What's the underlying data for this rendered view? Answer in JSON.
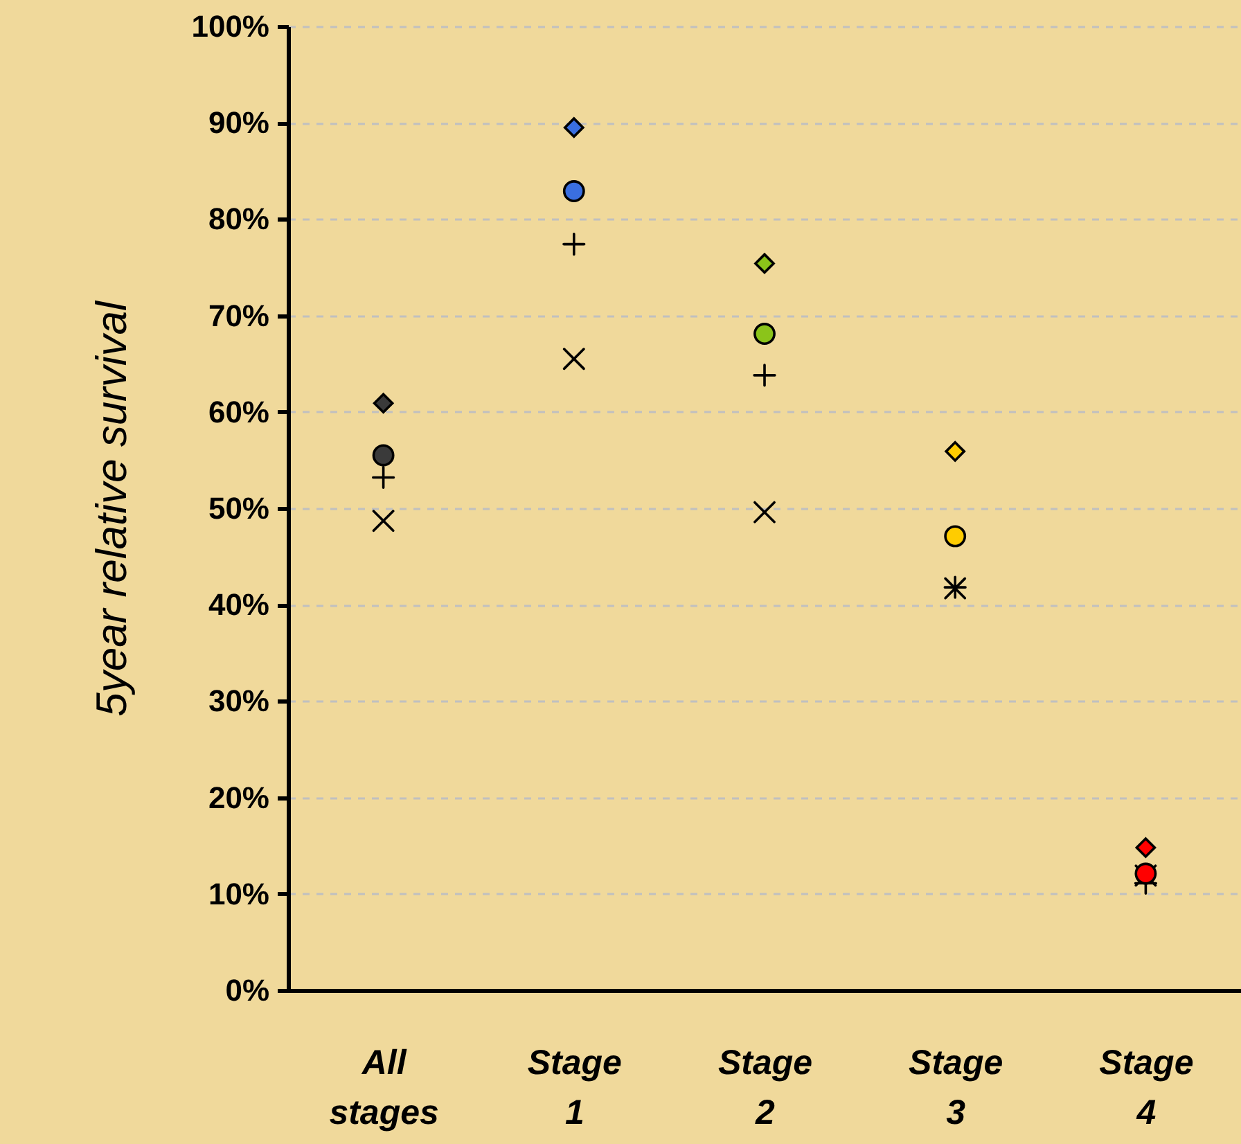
{
  "chart_data": {
    "type": "scatter",
    "ylabel": "5year relative survival",
    "categories": [
      "All stages",
      "Stage 1",
      "Stage 2",
      "Stage 3",
      "Stage 4"
    ],
    "ylim": [
      0,
      100
    ],
    "yticks": [
      {
        "value": 0,
        "label": "0%"
      },
      {
        "value": 10,
        "label": "10%"
      },
      {
        "value": 20,
        "label": "20%"
      },
      {
        "value": 30,
        "label": "30%"
      },
      {
        "value": 40,
        "label": "40%"
      },
      {
        "value": 50,
        "label": "50%"
      },
      {
        "value": 60,
        "label": "60%"
      },
      {
        "value": 70,
        "label": "70%"
      },
      {
        "value": 80,
        "label": "80%"
      },
      {
        "value": 90,
        "label": "90%"
      },
      {
        "value": 100,
        "label": "100%"
      }
    ],
    "grid": "y",
    "series": [
      {
        "marker": "cross",
        "color": "#000000",
        "values": [
          48.7,
          65.5,
          49.6,
          41.7,
          11.9
        ]
      },
      {
        "marker": "plus",
        "color": "#000000",
        "values": [
          53.2,
          77.4,
          63.8,
          41.8,
          11.1
        ]
      },
      {
        "marker": "circle",
        "colors": [
          "#3a3a3a",
          "#3a6fe0",
          "#8bc41a",
          "#ffcc00",
          "#ff0000"
        ],
        "values": [
          55.5,
          82.9,
          68.1,
          47.1,
          12.1
        ]
      },
      {
        "marker": "diamond",
        "colors": [
          "#3a3a3a",
          "#3a6fe0",
          "#8bc41a",
          "#ffcc00",
          "#ff0000"
        ],
        "values": [
          60.9,
          89.5,
          75.4,
          55.9,
          14.8
        ]
      }
    ]
  }
}
